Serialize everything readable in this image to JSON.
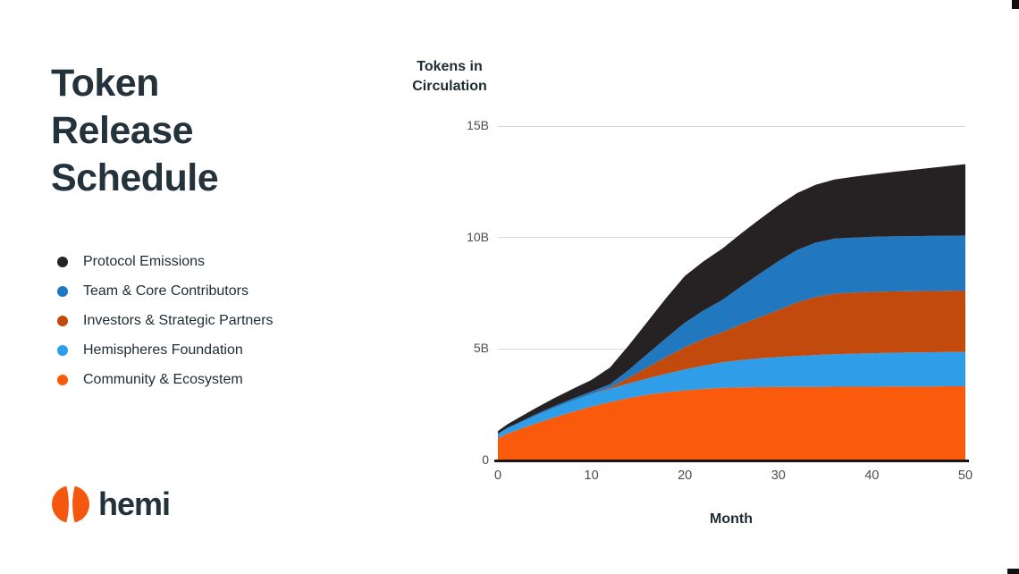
{
  "page": {
    "title": "Token Release Schedule",
    "brand": {
      "logo_text": "hemi",
      "logo_color": "#f4570e"
    }
  },
  "chart_data": {
    "type": "area",
    "stacked": true,
    "title": "Token Release Schedule",
    "y_axis_title": "Tokens in Circulation",
    "xlabel": "Month",
    "ylabel": "Tokens in Circulation",
    "xlim": [
      0,
      50
    ],
    "ylim": [
      0,
      15
    ],
    "units": "billions of tokens (B)",
    "grid": "horizontal only",
    "legend_position": "left of chart, vertical",
    "x_ticks": [
      {
        "label": "0",
        "value": 0
      },
      {
        "label": "10",
        "value": 10
      },
      {
        "label": "20",
        "value": 20
      },
      {
        "label": "30",
        "value": 30
      },
      {
        "label": "40",
        "value": 40
      },
      {
        "label": "50",
        "value": 50
      }
    ],
    "y_ticks": [
      {
        "label": "0",
        "value": 0
      },
      {
        "label": "5B",
        "value": 5
      },
      {
        "label": "10B",
        "value": 10
      },
      {
        "label": "15B",
        "value": 15
      }
    ],
    "months": [
      0,
      1,
      2,
      4,
      6,
      8,
      10,
      12,
      14,
      16,
      18,
      20,
      22,
      24,
      26,
      28,
      30,
      32,
      34,
      36,
      38,
      40,
      42,
      44,
      46,
      48,
      50
    ],
    "stack_note": "series listed in legend order (top of stack first); stacked bottom-to-top in reverse order",
    "series": [
      {
        "id": "protocol-emissions",
        "name": "Protocol Emissions",
        "color": "#262223",
        "values": [
          0.12,
          0.16,
          0.2,
          0.28,
          0.36,
          0.44,
          0.52,
          0.75,
          1.1,
          1.45,
          1.8,
          2.1,
          2.2,
          2.3,
          2.38,
          2.44,
          2.5,
          2.55,
          2.6,
          2.65,
          2.72,
          2.8,
          2.88,
          2.96,
          3.04,
          3.12,
          3.2
        ]
      },
      {
        "id": "team-core-contributors",
        "name": "Team & Core Contributors",
        "color": "#2178be",
        "values": [
          0.02,
          0.03,
          0.04,
          0.06,
          0.08,
          0.1,
          0.12,
          0.15,
          0.35,
          0.6,
          0.85,
          1.1,
          1.28,
          1.45,
          1.7,
          1.95,
          2.2,
          2.35,
          2.44,
          2.47,
          2.47,
          2.47,
          2.47,
          2.47,
          2.47,
          2.47,
          2.47
        ]
      },
      {
        "id": "investors-strategic-partners",
        "name": "Investors & Strategic Partners",
        "color": "#c24a0c",
        "values": [
          0,
          0,
          0,
          0,
          0,
          0,
          0,
          0.05,
          0.25,
          0.5,
          0.75,
          1.0,
          1.2,
          1.35,
          1.6,
          1.85,
          2.1,
          2.4,
          2.6,
          2.72,
          2.74,
          2.75,
          2.75,
          2.75,
          2.75,
          2.75,
          2.75
        ]
      },
      {
        "id": "hemispheres-foundation",
        "name": "Hemispheres Foundation",
        "color": "#2f9de8",
        "values": [
          0.18,
          0.23,
          0.27,
          0.35,
          0.43,
          0.49,
          0.55,
          0.6,
          0.66,
          0.73,
          0.83,
          0.94,
          1.04,
          1.14,
          1.22,
          1.29,
          1.34,
          1.39,
          1.43,
          1.45,
          1.48,
          1.5,
          1.51,
          1.52,
          1.53,
          1.53,
          1.54
        ]
      },
      {
        "id": "community-ecosystem",
        "name": "Community & Ecosystem",
        "color": "#fa5a0b",
        "values": [
          1.0,
          1.2,
          1.35,
          1.65,
          1.92,
          2.18,
          2.42,
          2.62,
          2.8,
          2.95,
          3.06,
          3.14,
          3.21,
          3.26,
          3.28,
          3.29,
          3.3,
          3.3,
          3.3,
          3.31,
          3.31,
          3.31,
          3.32,
          3.32,
          3.32,
          3.33,
          3.33
        ]
      }
    ]
  }
}
